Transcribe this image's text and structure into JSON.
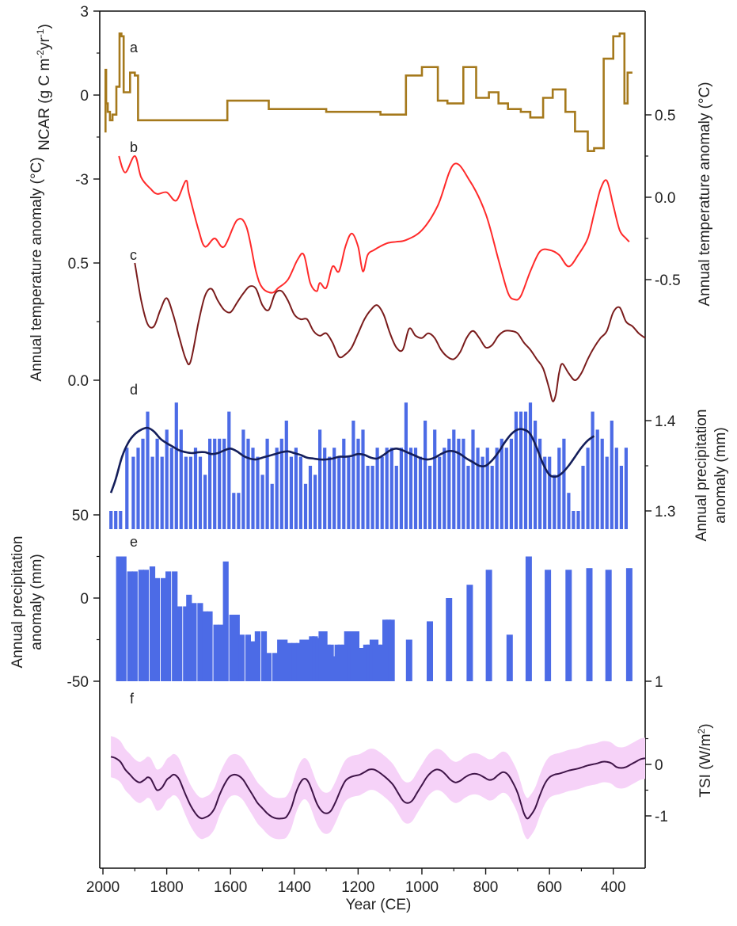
{
  "x_axis": {
    "label": "Year (CE)",
    "range": [
      2010,
      300
    ],
    "ticks": [
      2000,
      1800,
      1600,
      1400,
      1200,
      1000,
      800,
      600,
      400
    ],
    "direction": "reversed"
  },
  "colors": {
    "ncar": "#A5791C",
    "temp_b": "#FF2A2A",
    "temp_c": "#7A1C1C",
    "precip_bars": "#4C6BE6",
    "precip_smooth": "#141E5A",
    "tsi_line": "#3F1448",
    "tsi_band": "#F6D2F8"
  },
  "chart_data": [
    {
      "panel": "a",
      "type": "line",
      "step": true,
      "ylabel": "NCAR (g C m-2yr-1)",
      "ylabel_parts": [
        "NCAR (g C m",
        "-2",
        "yr",
        "-1",
        ")"
      ],
      "y_side": "left",
      "y_ticks": [
        3,
        0,
        -3
      ],
      "y_tick_labels": [
        "3",
        "0",
        "-3"
      ],
      "ylim": [
        -3,
        3
      ],
      "x": [
        1995,
        1992,
        1990,
        1985,
        1978,
        1970,
        1958,
        1948,
        1942,
        1935,
        1915,
        1900,
        1890,
        1650,
        1610,
        1480,
        1300,
        1130,
        1050,
        1000,
        950,
        920,
        870,
        830,
        790,
        760,
        730,
        690,
        660,
        620,
        590,
        550,
        520,
        480,
        460,
        430,
        400,
        380,
        365,
        355,
        340
      ],
      "y": [
        -1.3,
        0.9,
        -0.3,
        -0.6,
        -0.9,
        -0.7,
        0.3,
        2.2,
        2.1,
        0.1,
        0.8,
        0.7,
        -0.9,
        -0.9,
        -0.2,
        -0.5,
        -0.6,
        -0.7,
        0.7,
        1.0,
        -0.2,
        -0.3,
        1.0,
        -0.1,
        0.1,
        -0.3,
        -0.5,
        -0.6,
        -0.8,
        -0.1,
        0.2,
        -0.6,
        -1.3,
        -2.0,
        -1.9,
        1.3,
        2.1,
        2.2,
        -0.3,
        0.8,
        0.8
      ]
    },
    {
      "panel": "b",
      "type": "line",
      "ylabel": "Annual temperature anomaly (°C)",
      "y_side": "right",
      "y_ticks": [
        0.5,
        0.0,
        -0.5
      ],
      "y_tick_labels": [
        "0.5",
        "0.0",
        "-0.5"
      ],
      "x": [
        1950,
        1930,
        1900,
        1880,
        1850,
        1830,
        1800,
        1770,
        1740,
        1730,
        1700,
        1680,
        1650,
        1620,
        1580,
        1550,
        1520,
        1500,
        1470,
        1450,
        1420,
        1390,
        1370,
        1350,
        1330,
        1320,
        1300,
        1280,
        1260,
        1240,
        1220,
        1200,
        1185,
        1170,
        1150,
        1110,
        1080,
        1050,
        1000,
        950,
        900,
        850,
        800,
        760,
        730,
        710,
        690,
        660,
        630,
        600,
        570,
        540,
        510,
        480,
        460,
        440,
        420,
        400,
        380,
        360,
        350
      ],
      "y": [
        0.25,
        0.15,
        0.25,
        0.12,
        0.05,
        0.02,
        0.03,
        -0.02,
        0.1,
        0.02,
        -0.2,
        -0.3,
        -0.25,
        -0.3,
        -0.14,
        -0.18,
        -0.45,
        -0.55,
        -0.58,
        -0.55,
        -0.5,
        -0.38,
        -0.35,
        -0.52,
        -0.57,
        -0.52,
        -0.55,
        -0.42,
        -0.45,
        -0.3,
        -0.22,
        -0.3,
        -0.45,
        -0.35,
        -0.32,
        -0.28,
        -0.27,
        -0.26,
        -0.2,
        -0.05,
        0.2,
        0.1,
        -0.1,
        -0.38,
        -0.58,
        -0.62,
        -0.6,
        -0.45,
        -0.33,
        -0.32,
        -0.35,
        -0.42,
        -0.35,
        -0.25,
        -0.1,
        0.05,
        0.1,
        -0.05,
        -0.2,
        -0.25,
        -0.27
      ]
    },
    {
      "panel": "c",
      "type": "line",
      "ylabel": "Annual temperature anomaly (°C)",
      "y_side": "left",
      "y_ticks": [
        0.5,
        0.0
      ],
      "y_tick_labels": [
        "0.5",
        "0.0"
      ],
      "x": [
        1900,
        1880,
        1860,
        1840,
        1820,
        1800,
        1780,
        1760,
        1740,
        1725,
        1700,
        1680,
        1660,
        1640,
        1620,
        1600,
        1580,
        1560,
        1540,
        1520,
        1500,
        1480,
        1460,
        1440,
        1420,
        1400,
        1380,
        1360,
        1340,
        1320,
        1300,
        1280,
        1260,
        1240,
        1220,
        1200,
        1180,
        1160,
        1140,
        1120,
        1100,
        1080,
        1060,
        1040,
        1020,
        1000,
        980,
        960,
        940,
        920,
        900,
        880,
        860,
        840,
        820,
        800,
        780,
        760,
        740,
        720,
        700,
        680,
        660,
        640,
        620,
        600,
        590,
        580,
        570,
        560,
        540,
        520,
        500,
        480,
        460,
        440,
        420,
        400,
        380,
        360,
        340,
        320,
        300
      ],
      "y": [
        0.5,
        0.34,
        0.24,
        0.23,
        0.3,
        0.35,
        0.28,
        0.18,
        0.09,
        0.08,
        0.25,
        0.36,
        0.39,
        0.34,
        0.3,
        0.29,
        0.33,
        0.37,
        0.4,
        0.39,
        0.32,
        0.3,
        0.37,
        0.38,
        0.34,
        0.28,
        0.26,
        0.26,
        0.21,
        0.19,
        0.2,
        0.16,
        0.1,
        0.11,
        0.14,
        0.2,
        0.26,
        0.3,
        0.32,
        0.28,
        0.2,
        0.14,
        0.13,
        0.22,
        0.19,
        0.18,
        0.2,
        0.18,
        0.13,
        0.1,
        0.09,
        0.12,
        0.18,
        0.21,
        0.18,
        0.14,
        0.15,
        0.19,
        0.21,
        0.21,
        0.2,
        0.16,
        0.13,
        0.09,
        0.05,
        -0.04,
        -0.09,
        -0.06,
        0.03,
        0.07,
        0.03,
        0.0,
        0.03,
        0.09,
        0.14,
        0.18,
        0.21,
        0.29,
        0.31,
        0.25,
        0.23,
        0.2,
        0.18
      ]
    },
    {
      "panel": "d",
      "type": "bar",
      "ylabel": "Annual precipitation anomaly (mm)",
      "y_side": "right",
      "y_ticks": [
        1.4,
        1.3
      ],
      "y_tick_labels": [
        "1.4",
        "1.3"
      ],
      "ylim": [
        1.29,
        1.44
      ],
      "x": [
        1975,
        1960,
        1945,
        1925,
        1905,
        1890,
        1875,
        1860,
        1845,
        1830,
        1815,
        1800,
        1785,
        1770,
        1755,
        1740,
        1725,
        1710,
        1695,
        1680,
        1665,
        1650,
        1635,
        1620,
        1605,
        1590,
        1575,
        1560,
        1545,
        1530,
        1515,
        1500,
        1485,
        1470,
        1455,
        1440,
        1425,
        1410,
        1395,
        1380,
        1365,
        1350,
        1335,
        1320,
        1305,
        1290,
        1275,
        1260,
        1245,
        1230,
        1215,
        1200,
        1185,
        1170,
        1155,
        1140,
        1125,
        1110,
        1095,
        1080,
        1065,
        1050,
        1035,
        1020,
        1005,
        990,
        975,
        960,
        945,
        930,
        915,
        900,
        885,
        870,
        855,
        840,
        825,
        810,
        795,
        780,
        765,
        750,
        735,
        720,
        705,
        690,
        675,
        660,
        645,
        630,
        615,
        600,
        585,
        570,
        555,
        540,
        525,
        510,
        495,
        480,
        465,
        450,
        435,
        420,
        405,
        390,
        375,
        360
      ],
      "values": [
        1.3,
        1.3,
        1.3,
        1.37,
        1.36,
        1.37,
        1.38,
        1.41,
        1.36,
        1.38,
        1.36,
        1.39,
        1.37,
        1.42,
        1.39,
        1.36,
        1.36,
        1.37,
        1.36,
        1.34,
        1.38,
        1.38,
        1.38,
        1.38,
        1.41,
        1.32,
        1.32,
        1.39,
        1.38,
        1.37,
        1.36,
        1.34,
        1.38,
        1.33,
        1.37,
        1.38,
        1.4,
        1.36,
        1.37,
        1.36,
        1.33,
        1.35,
        1.34,
        1.39,
        1.37,
        1.36,
        1.37,
        1.36,
        1.38,
        1.36,
        1.4,
        1.38,
        1.39,
        1.35,
        1.35,
        1.37,
        1.36,
        1.37,
        1.37,
        1.35,
        1.37,
        1.42,
        1.37,
        1.37,
        1.36,
        1.4,
        1.35,
        1.39,
        1.36,
        1.37,
        1.38,
        1.39,
        1.38,
        1.38,
        1.35,
        1.39,
        1.37,
        1.36,
        1.37,
        1.35,
        1.37,
        1.38,
        1.37,
        1.38,
        1.41,
        1.41,
        1.41,
        1.42,
        1.4,
        1.38,
        1.36,
        1.36,
        1.34,
        1.37,
        1.38,
        1.32,
        1.3,
        1.3,
        1.35,
        1.37,
        1.41,
        1.39,
        1.38,
        1.36,
        1.4,
        1.37,
        1.35,
        1.37
      ]
    },
    {
      "panel": "d",
      "type": "line",
      "series": "smoothed precipitation",
      "x": [
        1975,
        1960,
        1940,
        1920,
        1900,
        1880,
        1860,
        1840,
        1820,
        1800,
        1780,
        1760,
        1740,
        1720,
        1700,
        1680,
        1660,
        1640,
        1620,
        1600,
        1580,
        1560,
        1540,
        1520,
        1500,
        1480,
        1460,
        1440,
        1420,
        1400,
        1380,
        1360,
        1340,
        1320,
        1300,
        1280,
        1260,
        1240,
        1220,
        1200,
        1180,
        1160,
        1140,
        1120,
        1100,
        1080,
        1060,
        1040,
        1020,
        1000,
        980,
        960,
        940,
        920,
        900,
        880,
        860,
        840,
        820,
        800,
        780,
        760,
        740,
        720,
        700,
        680,
        660,
        640,
        620,
        600,
        580,
        560,
        540,
        520,
        500,
        480,
        460
      ],
      "y": [
        1.32,
        1.335,
        1.36,
        1.376,
        1.385,
        1.39,
        1.392,
        1.388,
        1.38,
        1.375,
        1.371,
        1.367,
        1.365,
        1.364,
        1.365,
        1.365,
        1.363,
        1.364,
        1.367,
        1.369,
        1.366,
        1.361,
        1.358,
        1.357,
        1.359,
        1.361,
        1.363,
        1.365,
        1.366,
        1.364,
        1.362,
        1.359,
        1.358,
        1.357,
        1.357,
        1.358,
        1.36,
        1.36,
        1.361,
        1.363,
        1.362,
        1.359,
        1.358,
        1.362,
        1.367,
        1.369,
        1.367,
        1.364,
        1.361,
        1.358,
        1.357,
        1.359,
        1.363,
        1.366,
        1.366,
        1.363,
        1.358,
        1.354,
        1.35,
        1.35,
        1.356,
        1.365,
        1.376,
        1.385,
        1.39,
        1.39,
        1.385,
        1.37,
        1.352,
        1.34,
        1.338,
        1.342,
        1.35,
        1.36,
        1.37,
        1.378,
        1.383
      ]
    },
    {
      "panel": "e",
      "type": "bar",
      "ylabel": "Annual precipitation anomaly (mm)",
      "y_side": "left",
      "y_ticks": [
        50,
        0,
        -50
      ],
      "y_tick_labels": [
        "50",
        "0",
        "-50"
      ],
      "right_tick_labels": [
        "1"
      ],
      "ylim": [
        -50,
        50
      ],
      "x": [
        1950,
        1935,
        1915,
        1900,
        1880,
        1865,
        1845,
        1830,
        1810,
        1795,
        1775,
        1760,
        1740,
        1730,
        1715,
        1695,
        1680,
        1665,
        1645,
        1630,
        1615,
        1595,
        1580,
        1565,
        1545,
        1530,
        1515,
        1495,
        1480,
        1460,
        1445,
        1430,
        1415,
        1400,
        1385,
        1375,
        1365,
        1355,
        1345,
        1335,
        1325,
        1315,
        1305,
        1295,
        1285,
        1275,
        1265,
        1255,
        1245,
        1235,
        1225,
        1215,
        1205,
        1195,
        1185,
        1175,
        1165,
        1155,
        1145,
        1135,
        1125,
        1115,
        1105,
        1095,
        1040,
        975,
        915,
        850,
        790,
        725,
        665,
        605,
        540,
        475,
        415,
        350
      ],
      "values": [
        25,
        25,
        16,
        16,
        17,
        17,
        19,
        12,
        12,
        16,
        16,
        -5,
        -5,
        2,
        -3,
        -3,
        -8,
        -8,
        -16,
        -16,
        22,
        -10,
        -10,
        -22,
        -22,
        -26,
        -20,
        -20,
        -33,
        -33,
        -25,
        -25,
        -27,
        -27,
        -27,
        -25,
        -25,
        -25,
        -23,
        -23,
        -24,
        -20,
        -20,
        -28,
        -28,
        -35,
        -28,
        -28,
        -28,
        -20,
        -20,
        -20,
        -20,
        -30,
        -30,
        -28,
        -28,
        -25,
        -25,
        -28,
        -28,
        -13,
        -13,
        -13,
        -25,
        -14,
        0,
        8,
        17,
        -22,
        25,
        17,
        17,
        18,
        17,
        18
      ]
    },
    {
      "panel": "f",
      "type": "area",
      "ylabel": "TSI (W/m2)",
      "ylabel_parts": [
        "TSI (W/m",
        "2",
        ")"
      ],
      "y_side": "right",
      "y_ticks": [
        0,
        -1
      ],
      "y_tick_labels": [
        "0",
        "-1"
      ],
      "x": [
        1975,
        1960,
        1945,
        1930,
        1915,
        1900,
        1885,
        1870,
        1860,
        1850,
        1840,
        1830,
        1815,
        1800,
        1790,
        1780,
        1770,
        1760,
        1750,
        1740,
        1725,
        1710,
        1700,
        1690,
        1680,
        1665,
        1650,
        1635,
        1620,
        1605,
        1590,
        1575,
        1560,
        1545,
        1530,
        1515,
        1500,
        1485,
        1470,
        1455,
        1440,
        1425,
        1410,
        1395,
        1385,
        1375,
        1365,
        1355,
        1345,
        1330,
        1315,
        1300,
        1285,
        1270,
        1255,
        1240,
        1225,
        1210,
        1195,
        1180,
        1165,
        1150,
        1135,
        1120,
        1105,
        1090,
        1075,
        1060,
        1045,
        1030,
        1015,
        1000,
        985,
        970,
        955,
        940,
        925,
        910,
        895,
        880,
        865,
        850,
        835,
        820,
        805,
        790,
        775,
        760,
        745,
        730,
        715,
        700,
        690,
        680,
        670,
        660,
        645,
        630,
        615,
        600,
        585,
        570,
        555,
        540,
        525,
        510,
        495,
        480,
        465,
        450,
        435,
        420,
        405,
        390,
        375,
        360,
        345,
        330,
        315,
        300
      ],
      "y": [
        0.15,
        0.12,
        0.05,
        -0.1,
        -0.2,
        -0.3,
        -0.35,
        -0.3,
        -0.25,
        -0.28,
        -0.4,
        -0.5,
        -0.45,
        -0.3,
        -0.25,
        -0.2,
        -0.22,
        -0.3,
        -0.45,
        -0.6,
        -0.8,
        -0.95,
        -1.02,
        -1.05,
        -1.03,
        -0.98,
        -0.85,
        -0.6,
        -0.4,
        -0.25,
        -0.2,
        -0.22,
        -0.3,
        -0.45,
        -0.6,
        -0.75,
        -0.85,
        -0.95,
        -1.02,
        -1.05,
        -1.05,
        -1.02,
        -0.85,
        -0.55,
        -0.4,
        -0.3,
        -0.28,
        -0.35,
        -0.5,
        -0.75,
        -0.9,
        -0.95,
        -0.9,
        -0.72,
        -0.5,
        -0.32,
        -0.25,
        -0.22,
        -0.2,
        -0.15,
        -0.1,
        -0.1,
        -0.15,
        -0.22,
        -0.3,
        -0.4,
        -0.55,
        -0.7,
        -0.75,
        -0.7,
        -0.55,
        -0.4,
        -0.25,
        -0.15,
        -0.1,
        -0.12,
        -0.2,
        -0.3,
        -0.35,
        -0.32,
        -0.25,
        -0.2,
        -0.18,
        -0.2,
        -0.25,
        -0.3,
        -0.28,
        -0.2,
        -0.15,
        -0.2,
        -0.35,
        -0.55,
        -0.75,
        -0.95,
        -1.05,
        -1.0,
        -0.85,
        -0.6,
        -0.38,
        -0.25,
        -0.2,
        -0.18,
        -0.15,
        -0.12,
        -0.1,
        -0.08,
        -0.05,
        -0.02,
        0.0,
        0.02,
        0.05,
        0.05,
        0.02,
        -0.05,
        -0.07,
        -0.05,
        0.0,
        0.05,
        0.1,
        0.12
      ],
      "band_halfwidth": 0.4
    }
  ],
  "panels": {
    "a": "a",
    "b": "b",
    "c": "c",
    "d": "d",
    "e": "e",
    "f": "f"
  }
}
